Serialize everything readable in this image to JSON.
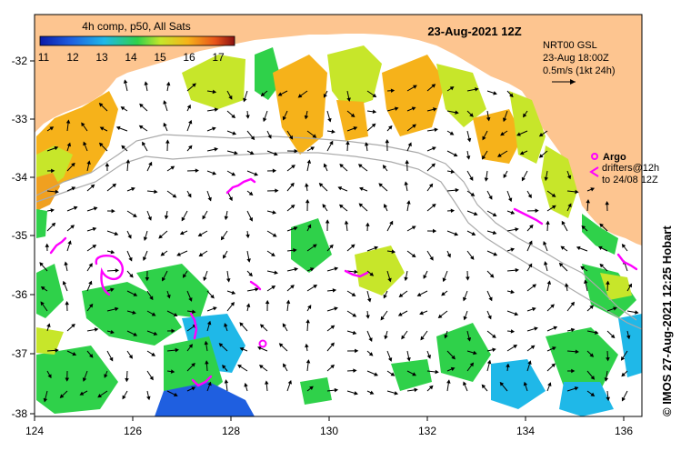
{
  "title": "23-Aug-2021 12Z",
  "colorbar": {
    "label": "4h comp, p50, All Sats",
    "ticks": [
      "11",
      "12",
      "13",
      "14",
      "15",
      "16",
      "17"
    ],
    "colors": [
      "#0b1aa8",
      "#1f5fe0",
      "#1fb8e8",
      "#2fd14a",
      "#c7e62a",
      "#f6b21a",
      "#e8541a",
      "#8a1010"
    ]
  },
  "legend": {
    "product": "NRT00 GSL",
    "time": "23-Aug 18:00Z",
    "scale": "0.5m/s (1kt 24h)"
  },
  "argo": {
    "label": "Argo",
    "line1": "drifters@12h",
    "line2": "to 24/08 12Z",
    "color": "#ff00ff"
  },
  "credit": "© IMOS 27-Aug-2021 12:25 Hobart",
  "axes": {
    "x_ticks": [
      "124",
      "126",
      "128",
      "130",
      "132",
      "134",
      "136"
    ],
    "y_ticks": [
      "-32",
      "-33",
      "-34",
      "-35",
      "-36",
      "-37",
      "-38"
    ]
  },
  "colors": {
    "land": "#fdc590",
    "sea": "#ffffff",
    "shelf_contour": "#aaaaaa"
  }
}
